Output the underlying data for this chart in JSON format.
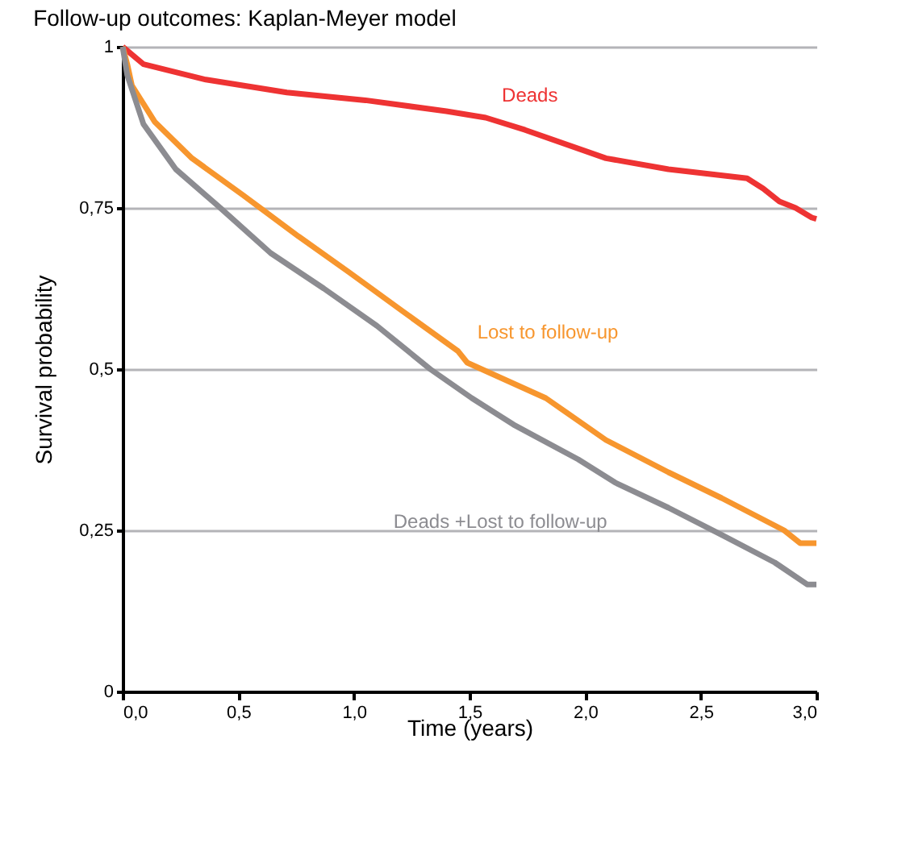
{
  "chart_data": {
    "type": "line",
    "title": "Follow-up outcomes: Kaplan-Meyer model",
    "xlabel": "Time (years)",
    "ylabel": "Survival probability",
    "xlim": [
      0,
      3
    ],
    "xticks": [
      {
        "value": 0,
        "label": "0,0"
      },
      {
        "value": 0.5,
        "label": "0,5"
      },
      {
        "value": 1,
        "label": "1,0"
      },
      {
        "value": 1.5,
        "label": "1,5"
      },
      {
        "value": 2,
        "label": "2,0"
      },
      {
        "value": 2.5,
        "label": "2,5"
      },
      {
        "value": 3,
        "label": "3,0"
      }
    ],
    "ylim": [
      0,
      1
    ],
    "yticks": [
      0,
      {
        "value": 0.25,
        "label": "0,25"
      },
      {
        "value": 0.5,
        "label": "0,5"
      },
      {
        "value": 0.75,
        "label": "0,75"
      },
      1
    ],
    "grid": "y",
    "line_style": "solid",
    "series": [
      {
        "name": "Deads",
        "color": "#ee3333",
        "x": [
          0,
          0.09,
          0.36,
          0.71,
          1.05,
          1.4,
          1.57,
          1.74,
          2.09,
          2.36,
          2.7,
          2.77,
          2.84,
          2.91,
          2.98,
          3.0
        ],
        "values": [
          1.0,
          0.973,
          0.949,
          0.929,
          0.917,
          0.9,
          0.89,
          0.871,
          0.827,
          0.81,
          0.796,
          0.78,
          0.76,
          0.75,
          0.735,
          0.733
        ]
      },
      {
        "name": "Lost to follow-up",
        "color": "#f7962e",
        "x": [
          0,
          0.02,
          0.04,
          0.14,
          0.3,
          0.52,
          0.76,
          0.98,
          1.21,
          1.45,
          1.49,
          1.83,
          2.09,
          2.36,
          2.59,
          2.86,
          2.93,
          3.0
        ],
        "values": [
          1.0,
          0.973,
          0.94,
          0.883,
          0.827,
          0.77,
          0.706,
          0.65,
          0.59,
          0.528,
          0.51,
          0.455,
          0.39,
          0.34,
          0.3,
          0.25,
          0.23,
          0.23
        ]
      },
      {
        "name": "Deads +Lost to follow-up",
        "color": "#8c8c91",
        "x": [
          0,
          0.02,
          0.09,
          0.23,
          0.41,
          0.64,
          0.87,
          1.1,
          1.33,
          1.51,
          1.69,
          1.97,
          2.13,
          2.36,
          2.59,
          2.82,
          2.96,
          3.0
        ],
        "values": [
          1.0,
          0.956,
          0.88,
          0.81,
          0.754,
          0.68,
          0.625,
          0.567,
          0.5,
          0.455,
          0.414,
          0.36,
          0.324,
          0.285,
          0.243,
          0.2,
          0.166,
          0.166
        ]
      }
    ]
  }
}
